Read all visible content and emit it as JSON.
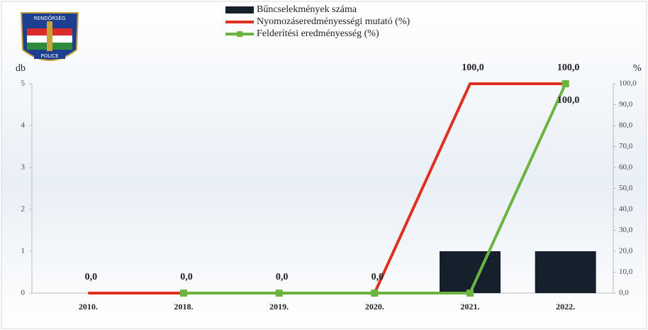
{
  "chart_data": {
    "type": "bar-line",
    "logo": {
      "top": "RENDŐRSÉG",
      "bottom": "POLICE"
    },
    "y_label": "db",
    "y2_label": "%",
    "categories": [
      "2010.",
      "2018.",
      "2019.",
      "2020.",
      "2021.",
      "2022."
    ],
    "series": [
      {
        "name": "Bűncselekmények száma",
        "type": "bar",
        "color": "#15202c",
        "values": [
          0,
          0,
          0,
          0,
          1,
          1
        ]
      },
      {
        "name": "Nyomozáseredményességi mutató (%)",
        "type": "line",
        "axis": "y2",
        "color": "#e0311f",
        "values": [
          0,
          0,
          0,
          0,
          100,
          100
        ],
        "value_labels": [
          "0,0",
          "0,0",
          "0,0",
          "0,0",
          "100,0",
          "100,0"
        ]
      },
      {
        "name": "Felderítési eredményesség (%)",
        "type": "line",
        "axis": "y2",
        "color": "#6cb440",
        "markers": true,
        "values": [
          null,
          0,
          0,
          0,
          0,
          100
        ],
        "value_labels": [
          null,
          null,
          null,
          null,
          null,
          "100,0"
        ]
      }
    ],
    "ylim": [
      0,
      5
    ],
    "yticks": [
      0,
      1,
      2,
      3,
      4,
      5
    ],
    "y2lim": [
      0,
      100
    ],
    "y2ticks": [
      {
        "value": 0,
        "label": "0,0"
      },
      {
        "value": 10,
        "label": "10,0"
      },
      {
        "value": 20,
        "label": "20,0"
      },
      {
        "value": 30,
        "label": "30,0"
      },
      {
        "value": 40,
        "label": "40,0"
      },
      {
        "value": 50,
        "label": "50,0"
      },
      {
        "value": 60,
        "label": "60,0"
      },
      {
        "value": 70,
        "label": "70,0"
      },
      {
        "value": 80,
        "label": "80,0"
      },
      {
        "value": 90,
        "label": "90,0"
      },
      {
        "value": 100,
        "label": "100,0"
      }
    ],
    "legend": "top"
  }
}
